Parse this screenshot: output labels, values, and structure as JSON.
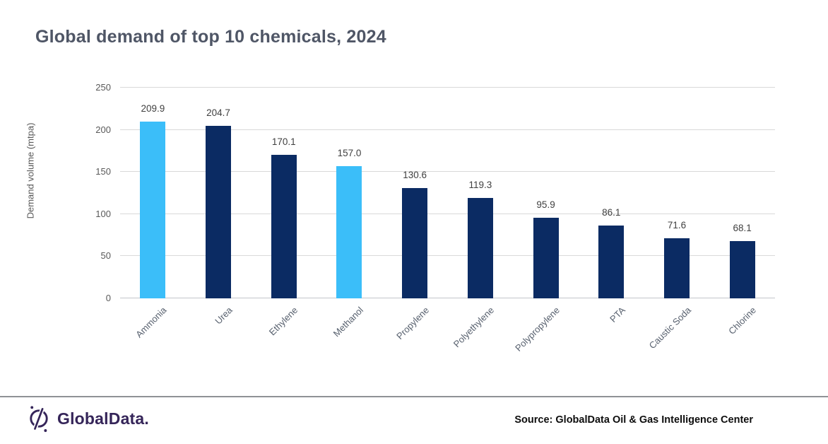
{
  "title": "Global demand of top 10 chemicals, 2024",
  "chart_data": {
    "type": "bar",
    "categories": [
      "Ammonia",
      "Urea",
      "Ethylene",
      "Methanol",
      "Propylene",
      "Polyethylene",
      "Polypropylene",
      "PTA",
      "Caustic Soda",
      "Chlorine"
    ],
    "values": [
      209.9,
      204.7,
      170.1,
      157.0,
      130.6,
      119.3,
      95.9,
      86.1,
      71.6,
      68.1
    ],
    "bar_colors": [
      "#3BBEF9",
      "#0B2B63",
      "#0B2B63",
      "#3BBEF9",
      "#0B2B63",
      "#0B2B63",
      "#0B2B63",
      "#0B2B63",
      "#0B2B63",
      "#0B2B63"
    ],
    "title": "Global demand of top 10 chemicals, 2024",
    "xlabel": "",
    "ylabel": "Demand volume (mtpa)",
    "ylim": [
      0,
      250
    ],
    "y_ticks": [
      0,
      50,
      100,
      150,
      200,
      250
    ],
    "grid": "horizontal",
    "legend": "none",
    "value_labels": "outside-end, one decimal"
  },
  "footer": {
    "brand": "GlobalData.",
    "source": "Source: GlobalData Oil & Gas Intelligence Center"
  },
  "colors": {
    "accent_blue": "#3BBEF9",
    "navy": "#0B2B63",
    "title_text": "#4F5666",
    "axis_text": "#595959",
    "gridline": "#D9D9D9",
    "brand_purple": "#352559"
  }
}
